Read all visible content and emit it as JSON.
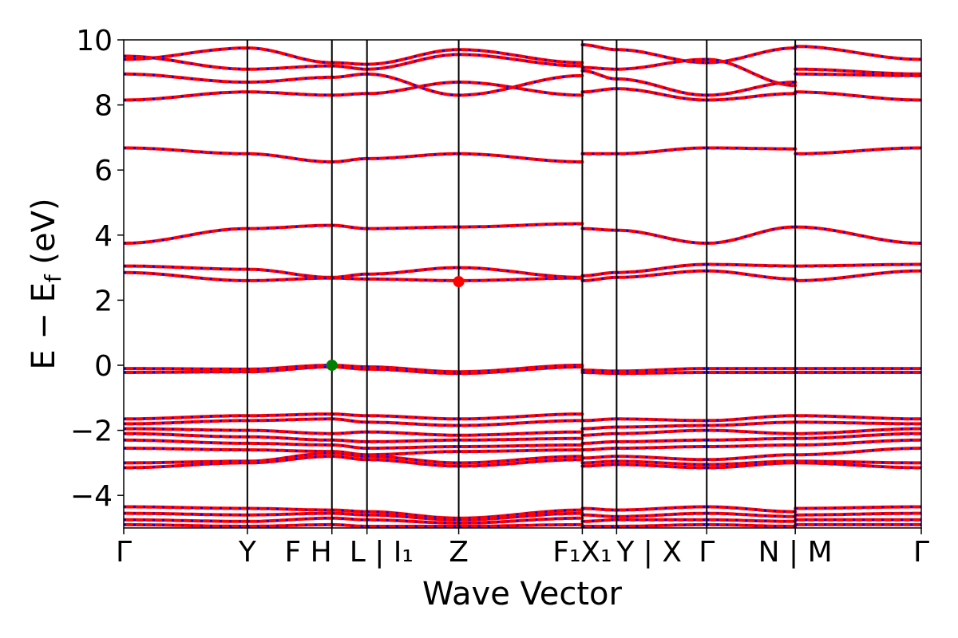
{
  "chart_data": {
    "type": "line",
    "xlabel": "Wave Vector",
    "ylabel": "E − E",
    "ylabel_sub": "f",
    "ylabel_unit": " (eV)",
    "ylim": [
      -5,
      10
    ],
    "yticks": [
      -4,
      -2,
      0,
      2,
      4,
      6,
      8,
      10
    ],
    "ytick_labels": [
      "−4",
      "−2",
      "0",
      "2",
      "4",
      "6",
      "8",
      "10"
    ],
    "xlim": [
      0,
      1
    ],
    "kpoint_positions": [
      0,
      0.155,
      0.261,
      0.305,
      0.42,
      0.575,
      0.618,
      0.731,
      0.842,
      1.0
    ],
    "kpoint_labels": [
      {
        "text": "Γ",
        "x": 0,
        "anchor": "middle"
      },
      {
        "text": "Y",
        "x": 0.155,
        "anchor": "middle"
      },
      {
        "text": "F H",
        "x": 0.261,
        "anchor": "end"
      },
      {
        "text": "L | I₁",
        "x": 0.283,
        "anchor": "start"
      },
      {
        "text": "Z",
        "x": 0.42,
        "anchor": "middle"
      },
      {
        "text": "F₁X₁",
        "x": 0.575,
        "anchor": "middle"
      },
      {
        "text": "Y | X",
        "x": 0.618,
        "anchor": "start"
      },
      {
        "text": "Γ",
        "x": 0.731,
        "anchor": "middle"
      },
      {
        "text": "N | M",
        "x": 0.842,
        "anchor": "middle"
      },
      {
        "text": "Γ",
        "x": 1.0,
        "anchor": "middle"
      }
    ],
    "line_colors": {
      "spin_up": "#ff0000",
      "spin_down": "#0000ff"
    },
    "segments": [
      {
        "from": 0,
        "to": 0.155,
        "bands": [
          [
            9.4,
            9.75
          ],
          [
            9.5,
            9.1
          ],
          [
            8.95,
            8.7
          ],
          [
            8.15,
            8.4
          ],
          [
            6.68,
            6.5
          ],
          [
            3.75,
            4.2
          ],
          [
            3.05,
            2.95
          ],
          [
            2.85,
            2.6
          ],
          [
            -0.1,
            -0.12
          ],
          [
            -0.22,
            -0.2
          ],
          [
            -1.65,
            -1.55
          ],
          [
            -1.8,
            -1.7
          ],
          [
            -1.95,
            -2.0
          ],
          [
            -2.1,
            -2.2
          ],
          [
            -2.3,
            -2.4
          ],
          [
            -2.55,
            -2.6
          ],
          [
            -3.0,
            -2.95
          ],
          [
            -3.15,
            -3.0
          ],
          [
            -4.35,
            -4.4
          ],
          [
            -4.55,
            -4.6
          ],
          [
            -4.75,
            -4.8
          ],
          [
            -4.9,
            -4.95
          ]
        ]
      },
      {
        "from": 0.155,
        "to": 0.261,
        "bands": [
          [
            9.75,
            9.3
          ],
          [
            9.1,
            9.2
          ],
          [
            8.7,
            8.85
          ],
          [
            8.4,
            8.3
          ],
          [
            6.5,
            6.25
          ],
          [
            4.2,
            4.3
          ],
          [
            2.95,
            2.7
          ],
          [
            2.6,
            2.68
          ],
          [
            -0.12,
            0.0
          ],
          [
            -0.2,
            -0.05
          ],
          [
            -1.55,
            -1.5
          ],
          [
            -1.7,
            -1.65
          ],
          [
            -2.0,
            -2.1
          ],
          [
            -2.2,
            -2.3
          ],
          [
            -2.4,
            -2.45
          ],
          [
            -2.6,
            -2.65
          ],
          [
            -2.95,
            -2.7
          ],
          [
            -3.0,
            -2.8
          ],
          [
            -4.4,
            -4.45
          ],
          [
            -4.6,
            -4.55
          ],
          [
            -4.8,
            -4.7
          ],
          [
            -4.95,
            -4.9
          ]
        ]
      },
      {
        "from": 0.261,
        "to": 0.305,
        "bands": [
          [
            9.3,
            9.25
          ],
          [
            9.2,
            9.1
          ],
          [
            8.85,
            8.95
          ],
          [
            8.3,
            8.35
          ],
          [
            6.25,
            6.35
          ],
          [
            4.3,
            4.2
          ],
          [
            2.7,
            2.8
          ],
          [
            2.68,
            2.65
          ],
          [
            0.0,
            -0.05
          ],
          [
            -0.05,
            -0.12
          ],
          [
            -1.5,
            -1.55
          ],
          [
            -1.65,
            -1.75
          ],
          [
            -2.1,
            -2.05
          ],
          [
            -2.3,
            -2.35
          ],
          [
            -2.45,
            -2.55
          ],
          [
            -2.65,
            -2.75
          ],
          [
            -2.7,
            -2.8
          ],
          [
            -2.8,
            -2.9
          ],
          [
            -4.45,
            -4.5
          ],
          [
            -4.55,
            -4.6
          ],
          [
            -4.7,
            -4.75
          ],
          [
            -4.9,
            -4.95
          ]
        ]
      },
      {
        "from": 0.305,
        "to": 0.42,
        "bands": [
          [
            9.25,
            9.7
          ],
          [
            9.1,
            9.55
          ],
          [
            8.95,
            8.3
          ],
          [
            8.35,
            8.7
          ],
          [
            6.35,
            6.5
          ],
          [
            4.2,
            4.25
          ],
          [
            2.8,
            3.0
          ],
          [
            2.65,
            2.6
          ],
          [
            -0.05,
            -0.2
          ],
          [
            -0.12,
            -0.25
          ],
          [
            -1.55,
            -1.65
          ],
          [
            -1.75,
            -1.85
          ],
          [
            -2.05,
            -2.15
          ],
          [
            -2.35,
            -2.3
          ],
          [
            -2.55,
            -2.5
          ],
          [
            -2.75,
            -2.65
          ],
          [
            -2.8,
            -3.0
          ],
          [
            -2.9,
            -3.1
          ],
          [
            -4.5,
            -4.7
          ],
          [
            -4.6,
            -4.75
          ],
          [
            -4.75,
            -4.85
          ],
          [
            -4.95,
            -4.95
          ]
        ]
      },
      {
        "from": 0.42,
        "to": 0.575,
        "bands": [
          [
            9.7,
            9.3
          ],
          [
            9.55,
            9.2
          ],
          [
            8.3,
            8.9
          ],
          [
            8.7,
            8.3
          ],
          [
            6.5,
            6.25
          ],
          [
            4.25,
            4.35
          ],
          [
            3.0,
            2.7
          ],
          [
            2.6,
            2.68
          ],
          [
            -0.2,
            0.0
          ],
          [
            -0.25,
            -0.05
          ],
          [
            -1.65,
            -1.5
          ],
          [
            -1.85,
            -1.7
          ],
          [
            -2.15,
            -2.05
          ],
          [
            -2.3,
            -2.25
          ],
          [
            -2.5,
            -2.45
          ],
          [
            -2.65,
            -2.6
          ],
          [
            -3.0,
            -2.8
          ],
          [
            -3.1,
            -2.9
          ],
          [
            -4.7,
            -4.45
          ],
          [
            -4.75,
            -4.55
          ],
          [
            -4.85,
            -4.7
          ],
          [
            -4.95,
            -4.9
          ]
        ]
      },
      {
        "from": 0.575,
        "to": 0.618,
        "bands": [
          [
            9.85,
            9.7
          ],
          [
            9.15,
            9.1
          ],
          [
            9.05,
            8.8
          ],
          [
            8.4,
            8.5
          ],
          [
            6.5,
            6.5
          ],
          [
            4.2,
            4.15
          ],
          [
            2.75,
            2.85
          ],
          [
            2.6,
            2.7
          ],
          [
            -0.15,
            -0.18
          ],
          [
            -0.22,
            -0.25
          ],
          [
            -1.7,
            -1.65
          ],
          [
            -1.95,
            -1.9
          ],
          [
            -2.15,
            -2.1
          ],
          [
            -2.4,
            -2.35
          ],
          [
            -2.6,
            -2.55
          ],
          [
            -2.85,
            -2.8
          ],
          [
            -3.0,
            -2.95
          ],
          [
            -3.1,
            -3.05
          ],
          [
            -4.4,
            -4.45
          ],
          [
            -4.6,
            -4.65
          ],
          [
            -4.8,
            -4.75
          ],
          [
            -4.95,
            -4.95
          ]
        ]
      },
      {
        "from": 0.618,
        "to": 0.731,
        "bands": [
          [
            9.7,
            9.3
          ],
          [
            9.1,
            9.4
          ],
          [
            8.8,
            8.3
          ],
          [
            8.5,
            8.15
          ],
          [
            6.5,
            6.68
          ],
          [
            4.15,
            3.75
          ],
          [
            2.85,
            3.1
          ],
          [
            2.7,
            2.9
          ],
          [
            -0.18,
            -0.1
          ],
          [
            -0.25,
            -0.22
          ],
          [
            -1.65,
            -1.7
          ],
          [
            -1.9,
            -1.85
          ],
          [
            -2.1,
            -2.0
          ],
          [
            -2.35,
            -2.3
          ],
          [
            -2.55,
            -2.5
          ],
          [
            -2.8,
            -2.9
          ],
          [
            -2.95,
            -3.05
          ],
          [
            -3.05,
            -3.15
          ],
          [
            -4.45,
            -4.35
          ],
          [
            -4.65,
            -4.55
          ],
          [
            -4.75,
            -4.75
          ],
          [
            -4.95,
            -4.9
          ]
        ]
      },
      {
        "from": 0.731,
        "to": 0.842,
        "bands": [
          [
            9.3,
            9.75
          ],
          [
            9.4,
            8.6
          ],
          [
            8.3,
            8.7
          ],
          [
            8.15,
            8.35
          ],
          [
            6.68,
            6.65
          ],
          [
            3.75,
            4.25
          ],
          [
            3.1,
            3.05
          ],
          [
            2.9,
            2.65
          ],
          [
            -0.1,
            -0.1
          ],
          [
            -0.22,
            -0.22
          ],
          [
            -1.7,
            -1.55
          ],
          [
            -1.85,
            -1.75
          ],
          [
            -2.0,
            -2.1
          ],
          [
            -2.3,
            -2.25
          ],
          [
            -2.5,
            -2.45
          ],
          [
            -2.9,
            -2.75
          ],
          [
            -3.05,
            -2.95
          ],
          [
            -3.15,
            -3.0
          ],
          [
            -4.35,
            -4.5
          ],
          [
            -4.55,
            -4.65
          ],
          [
            -4.75,
            -4.8
          ],
          [
            -4.9,
            -4.95
          ]
        ]
      },
      {
        "from": 0.842,
        "to": 1.0,
        "bands": [
          [
            9.8,
            9.4
          ],
          [
            9.1,
            8.95
          ],
          [
            8.95,
            8.9
          ],
          [
            8.4,
            8.15
          ],
          [
            6.5,
            6.68
          ],
          [
            4.25,
            3.75
          ],
          [
            3.05,
            3.1
          ],
          [
            2.6,
            2.9
          ],
          [
            -0.1,
            -0.1
          ],
          [
            -0.22,
            -0.22
          ],
          [
            -1.55,
            -1.65
          ],
          [
            -1.75,
            -1.8
          ],
          [
            -2.1,
            -1.95
          ],
          [
            -2.25,
            -2.1
          ],
          [
            -2.45,
            -2.3
          ],
          [
            -2.75,
            -2.55
          ],
          [
            -2.95,
            -3.0
          ],
          [
            -3.0,
            -3.15
          ],
          [
            -4.4,
            -4.35
          ],
          [
            -4.6,
            -4.55
          ],
          [
            -4.75,
            -4.75
          ],
          [
            -4.9,
            -4.9
          ]
        ]
      }
    ],
    "markers": [
      {
        "name": "vbm",
        "x": 0.261,
        "y": 0.0,
        "color": "#008000"
      },
      {
        "name": "cbm",
        "x": 0.42,
        "y": 2.57,
        "color": "#ff0000"
      }
    ]
  }
}
